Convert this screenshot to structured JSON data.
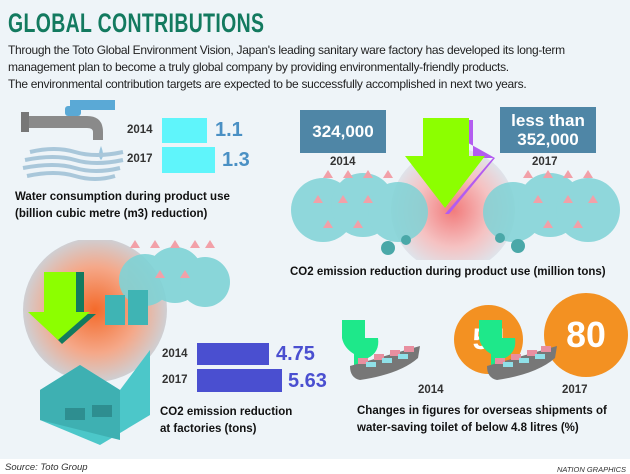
{
  "title": "GLOBAL CONTRIBUTIONS",
  "intro": [
    "Through the Toto Global Environment Vision, Japan's leading sanitary ware factory has developed its long-term",
    "management plan to become a truly global company by providing environmentally-friendly products.",
    "The environmental contribution targets are expected to be successfully accomplished in next two years."
  ],
  "colors": {
    "title": "#137a5f",
    "water_bar": "#5ff5fb",
    "water_value": "#4a90c4",
    "co2_box": "#4f86a6",
    "arrow": "#8cff00",
    "factory_bar": "#4a4fd0",
    "toilet_circle": "#f39122",
    "toilet_icon": "#1ee88a"
  },
  "chart_data": [
    {
      "type": "bar",
      "title": "Water consumption during product use",
      "subtitle": "(billion cubic metre (m3) reduction)",
      "categories": [
        "2014",
        "2017"
      ],
      "values": [
        1.1,
        1.3
      ],
      "labels": [
        "1.1",
        "1.3"
      ]
    },
    {
      "type": "table",
      "title": "CO2 emission reduction during product use (million tons)",
      "categories": [
        "2014",
        "2017"
      ],
      "labels": [
        "324,000",
        "less than 352,000"
      ],
      "label_lines": [
        [
          "324,000"
        ],
        [
          "less than",
          "352,000"
        ]
      ]
    },
    {
      "type": "bar",
      "title": "CO2 emission reduction",
      "subtitle": "at factories (tons)",
      "categories": [
        "2014",
        "2017"
      ],
      "values": [
        4.75,
        5.63
      ],
      "labels": [
        "4.75",
        "5.63"
      ]
    },
    {
      "type": "bar",
      "title": "Changes in figures for overseas shipments of",
      "subtitle": "water-saving toilet of below 4.8 litres (%)",
      "categories": [
        "2014",
        "2017"
      ],
      "values": [
        54,
        80
      ],
      "labels": [
        "54",
        "80"
      ]
    }
  ],
  "source": "Source: Toto Group",
  "credit": "NATION GRAPHICS"
}
